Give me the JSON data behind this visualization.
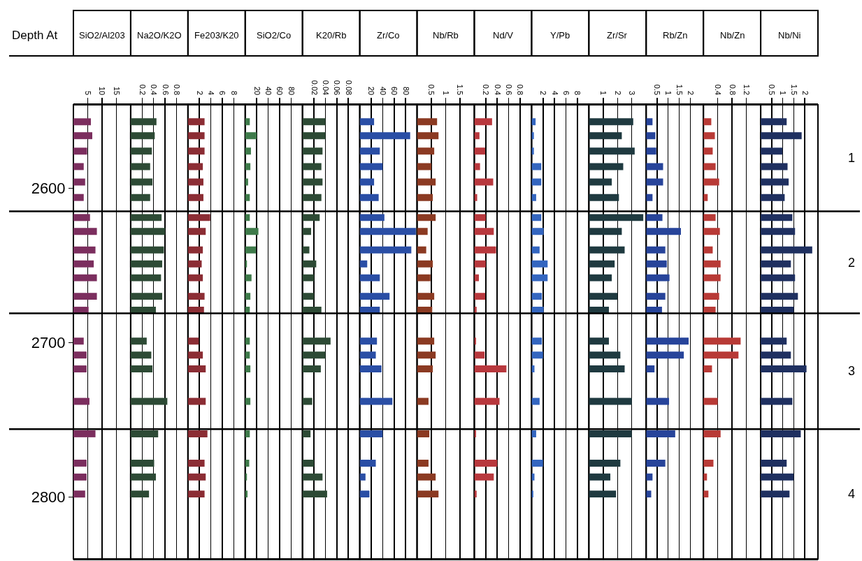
{
  "chart_data": [
    {
      "type": "bar",
      "orientation": "horizontal",
      "title": "SiO2/Al203",
      "ylabel": "Depth At",
      "x": [
        2557,
        2566,
        2576,
        2586,
        2596,
        2606,
        2619,
        2628,
        2640,
        2649,
        2658,
        2670,
        2679,
        2699,
        2708,
        2717,
        2738,
        2759,
        2778,
        2787,
        2798
      ],
      "values": [
        6.1,
        6.6,
        4.8,
        3.6,
        4.1,
        3.6,
        5.8,
        8.2,
        7.7,
        7.1,
        8.2,
        8.2,
        5.3,
        3.6,
        4.6,
        4.6,
        5.6,
        7.7,
        4.6,
        4.6,
        4.1
      ],
      "color": "#7b2e5e",
      "xlim": [
        0,
        20
      ],
      "xticks": [
        5,
        10,
        15
      ],
      "ylim": [
        2840,
        2546
      ],
      "yticks": [
        2600,
        2700,
        2800
      ],
      "grid": "x",
      "ref_lines": [
        {
          "axis": "y",
          "value": 2615
        },
        {
          "axis": "y",
          "value": 2681
        },
        {
          "axis": "y",
          "value": 2756
        }
      ],
      "annotations": [
        "1",
        "2",
        "3",
        "4"
      ]
    },
    {
      "type": "bar",
      "orientation": "horizontal",
      "title": "Na2O/K2O",
      "x": [
        2557,
        2566,
        2576,
        2586,
        2596,
        2606,
        2619,
        2628,
        2640,
        2649,
        2658,
        2670,
        2679,
        2699,
        2708,
        2717,
        2738,
        2759,
        2778,
        2787,
        2798
      ],
      "values": [
        0.45,
        0.42,
        0.37,
        0.34,
        0.38,
        0.34,
        0.54,
        0.6,
        0.58,
        0.55,
        0.53,
        0.55,
        0.44,
        0.28,
        0.36,
        0.38,
        0.64,
        0.48,
        0.41,
        0.44,
        0.32
      ],
      "color": "#2d4a35",
      "xlim": [
        0,
        1
      ],
      "xticks": [
        0.2,
        0.4,
        0.6,
        0.8
      ],
      "ylim": [
        2840,
        2546
      ],
      "yticks": [
        2600,
        2700,
        2800
      ],
      "grid": "x",
      "tick_labels": "x"
    },
    {
      "type": "bar",
      "orientation": "horizontal",
      "title": "Fe203/K20",
      "x": [
        2557,
        2566,
        2576,
        2586,
        2596,
        2606,
        2619,
        2628,
        2640,
        2649,
        2658,
        2670,
        2679,
        2699,
        2708,
        2717,
        2738,
        2759,
        2778,
        2787,
        2798
      ],
      "values": [
        2.9,
        2.9,
        2.9,
        2.6,
        2.7,
        2.7,
        3.9,
        3.1,
        2.6,
        2.4,
        2.6,
        2.9,
        2.8,
        1.9,
        2.6,
        3.1,
        3.1,
        3.4,
        2.9,
        3.1,
        2.9
      ],
      "color": "#8b2d34",
      "xlim": [
        0,
        10
      ],
      "xticks": [
        2,
        4,
        6,
        8
      ],
      "ylim": [
        2840,
        2546
      ],
      "yticks": [
        2600,
        2700,
        2800
      ],
      "grid": "x",
      "tick_labels": "x"
    },
    {
      "type": "bar",
      "orientation": "horizontal",
      "title": "SiO2/Co",
      "x": [
        2557,
        2566,
        2576,
        2586,
        2596,
        2606,
        2619,
        2628,
        2640,
        2649,
        2658,
        2670,
        2679,
        2699,
        2708,
        2717,
        2738,
        2759,
        2778,
        2787,
        2798
      ],
      "values": [
        8,
        20,
        10,
        9,
        5,
        8,
        8,
        23,
        19,
        3,
        11,
        9,
        8,
        8,
        8,
        9,
        9,
        8,
        7,
        3,
        4
      ],
      "color": "#3e7a4a",
      "xlim": [
        0,
        100
      ],
      "xticks": [
        20,
        40,
        60,
        80
      ],
      "ylim": [
        2840,
        2546
      ],
      "yticks": [
        2600,
        2700,
        2800
      ],
      "grid": "x",
      "tick_labels": "x"
    },
    {
      "type": "bar",
      "orientation": "horizontal",
      "title": "K20/Rb",
      "x": [
        2557,
        2566,
        2576,
        2586,
        2596,
        2606,
        2619,
        2628,
        2640,
        2649,
        2658,
        2670,
        2679,
        2699,
        2708,
        2717,
        2738,
        2759,
        2778,
        2787,
        2798
      ],
      "values": [
        0.04,
        0.04,
        0.035,
        0.033,
        0.035,
        0.033,
        0.03,
        0.015,
        0.012,
        0.024,
        0.02,
        0.02,
        0.033,
        0.049,
        0.04,
        0.032,
        0.017,
        0.014,
        0.02,
        0.035,
        0.043
      ],
      "color": "#2d4a35",
      "xlim": [
        0,
        0.1
      ],
      "xticks": [
        0.02,
        0.04,
        0.06,
        0.08
      ],
      "ylim": [
        2840,
        2546
      ],
      "yticks": [
        2600,
        2700,
        2800
      ],
      "grid": "x",
      "tick_labels": "x"
    },
    {
      "type": "bar",
      "orientation": "horizontal",
      "title": "Zr/Co",
      "x": [
        2557,
        2566,
        2576,
        2586,
        2596,
        2606,
        2619,
        2628,
        2640,
        2649,
        2658,
        2670,
        2679,
        2699,
        2708,
        2717,
        2738,
        2759,
        2778,
        2787,
        2798
      ],
      "values": [
        25,
        88,
        35,
        40,
        25,
        33,
        43,
        98,
        90,
        13,
        35,
        52,
        35,
        30,
        28,
        38,
        57,
        40,
        28,
        10,
        17
      ],
      "color": "#2a4ea5",
      "xlim": [
        0,
        100
      ],
      "xticks": [
        20,
        40,
        60,
        80
      ],
      "ylim": [
        2840,
        2546
      ],
      "yticks": [
        2600,
        2700,
        2800
      ],
      "grid": "x",
      "tick_labels": "x"
    },
    {
      "type": "bar",
      "orientation": "horizontal",
      "title": "Nb/Rb",
      "x": [
        2557,
        2566,
        2576,
        2586,
        2596,
        2606,
        2619,
        2628,
        2640,
        2649,
        2658,
        2670,
        2679,
        2699,
        2708,
        2717,
        2738,
        2759,
        2778,
        2787,
        2798
      ],
      "values": [
        0.7,
        0.75,
        0.6,
        0.5,
        0.65,
        0.55,
        0.65,
        0.37,
        0.32,
        0.55,
        0.47,
        0.6,
        0.53,
        0.6,
        0.65,
        0.55,
        0.4,
        0.43,
        0.4,
        0.65,
        0.75
      ],
      "color": "#8b3a22",
      "xlim": [
        0,
        2
      ],
      "xticks": [
        0.5,
        1,
        1.5
      ],
      "ylim": [
        2840,
        2546
      ],
      "yticks": [
        2600,
        2700,
        2800
      ],
      "grid": "x",
      "tick_labels": "x"
    },
    {
      "type": "bar",
      "orientation": "horizontal",
      "title": "Nd/V",
      "x": [
        2557,
        2566,
        2576,
        2586,
        2596,
        2606,
        2619,
        2628,
        2640,
        2649,
        2658,
        2670,
        2679,
        2699,
        2708,
        2717,
        2738,
        2759,
        2778,
        2787,
        2798
      ],
      "values": [
        0.31,
        0.09,
        0.19,
        0.1,
        0.33,
        0.05,
        0.2,
        0.34,
        0.38,
        0.2,
        0.08,
        0.19,
        0.04,
        0.03,
        0.18,
        0.56,
        0.44,
        0.03,
        0.4,
        0.34,
        0.04
      ],
      "color": "#b8383d",
      "xlim": [
        0,
        1
      ],
      "xticks": [
        0.2,
        0.4,
        0.6,
        0.8
      ],
      "ylim": [
        2840,
        2546
      ],
      "yticks": [
        2600,
        2700,
        2800
      ],
      "grid": "x",
      "tick_labels": "x"
    },
    {
      "type": "bar",
      "orientation": "horizontal",
      "title": "Y/Pb",
      "x": [
        2557,
        2566,
        2576,
        2586,
        2596,
        2606,
        2619,
        2628,
        2640,
        2649,
        2658,
        2670,
        2679,
        2699,
        2708,
        2717,
        2738,
        2759,
        2778,
        2787,
        2798
      ],
      "values": [
        0.7,
        0.4,
        0.4,
        1.7,
        1.7,
        0.8,
        1.7,
        2.1,
        1.4,
        2.8,
        2.8,
        1.8,
        2.1,
        1.8,
        2,
        0.5,
        1.4,
        0.8,
        2,
        0.5,
        0.3
      ],
      "color": "#3466c0",
      "xlim": [
        0,
        10
      ],
      "xticks": [
        2,
        4,
        6,
        8
      ],
      "ylim": [
        2840,
        2546
      ],
      "yticks": [
        2600,
        2700,
        2800
      ],
      "grid": "x",
      "tick_labels": "x"
    },
    {
      "type": "bar",
      "orientation": "horizontal",
      "title": "Zr/Sr",
      "x": [
        2557,
        2566,
        2576,
        2586,
        2596,
        2606,
        2619,
        2628,
        2640,
        2649,
        2658,
        2670,
        2679,
        2699,
        2708,
        2717,
        2738,
        2759,
        2778,
        2787,
        2798
      ],
      "values": [
        3.1,
        2.3,
        3.2,
        2.4,
        1.6,
        2.1,
        3.8,
        2.3,
        2.5,
        1.8,
        1.6,
        2,
        1.4,
        1.4,
        2.2,
        2.5,
        3,
        3,
        2.2,
        1.5,
        1.9
      ],
      "color": "#1f3a40",
      "xlim": [
        0,
        4
      ],
      "xticks": [
        1,
        2,
        3
      ],
      "ylim": [
        2840,
        2546
      ],
      "yticks": [
        2600,
        2700,
        2800
      ],
      "grid": "x",
      "tick_labels": "x"
    },
    {
      "type": "bar",
      "orientation": "horizontal",
      "title": "Rb/Zn",
      "x": [
        2557,
        2566,
        2576,
        2586,
        2596,
        2606,
        2619,
        2628,
        2640,
        2649,
        2658,
        2670,
        2679,
        2699,
        2708,
        2717,
        2738,
        2759,
        2778,
        2787,
        2798
      ],
      "values": [
        0.29,
        0.42,
        0.46,
        0.77,
        0.77,
        0.29,
        0.74,
        1.58,
        0.87,
        0.94,
        1.06,
        0.87,
        0.72,
        1.93,
        1.71,
        0.38,
        1.04,
        1.32,
        0.87,
        0.29,
        0.23
      ],
      "color": "#27449a",
      "xlim": [
        0,
        2.6
      ],
      "xticks": [
        0.5,
        1,
        1.5,
        2
      ],
      "ylim": [
        2840,
        2546
      ],
      "yticks": [
        2600,
        2700,
        2800
      ],
      "grid": "x",
      "tick_labels": "x"
    },
    {
      "type": "bar",
      "orientation": "horizontal",
      "title": "Nb/Zn",
      "x": [
        2557,
        2566,
        2576,
        2586,
        2596,
        2606,
        2619,
        2628,
        2640,
        2649,
        2658,
        2670,
        2679,
        2699,
        2708,
        2717,
        2738,
        2759,
        2778,
        2787,
        2798
      ],
      "values": [
        0.22,
        0.32,
        0.26,
        0.34,
        0.44,
        0.12,
        0.34,
        0.46,
        0.26,
        0.48,
        0.48,
        0.44,
        0.34,
        1.04,
        0.98,
        0.24,
        0.4,
        0.48,
        0.28,
        0.1,
        0.14
      ],
      "color": "#b83a36",
      "xlim": [
        0,
        1.6
      ],
      "xticks": [
        0.4,
        0.8,
        1.2
      ],
      "ylim": [
        2840,
        2546
      ],
      "yticks": [
        2600,
        2700,
        2800
      ],
      "grid": "x",
      "tick_labels": "x"
    },
    {
      "type": "bar",
      "orientation": "horizontal",
      "title": "Nb/Ni",
      "x": [
        2557,
        2566,
        2576,
        2586,
        2596,
        2606,
        2619,
        2628,
        2640,
        2649,
        2658,
        2670,
        2679,
        2699,
        2708,
        2717,
        2738,
        2759,
        2778,
        2787,
        2798
      ],
      "values": [
        1.18,
        1.86,
        0.99,
        1.22,
        1.27,
        1.09,
        1.44,
        1.56,
        2.34,
        1.37,
        1.56,
        1.69,
        1.5,
        1.18,
        1.37,
        2.08,
        1.44,
        1.82,
        1.18,
        1.5,
        1.31
      ],
      "color": "#1f3060",
      "xlim": [
        0,
        2.6
      ],
      "xticks": [
        0.5,
        1,
        1.5,
        2
      ],
      "ylim": [
        2840,
        2546
      ],
      "yticks": [
        2600,
        2700,
        2800
      ],
      "grid": "x",
      "tick_labels": "x"
    }
  ]
}
